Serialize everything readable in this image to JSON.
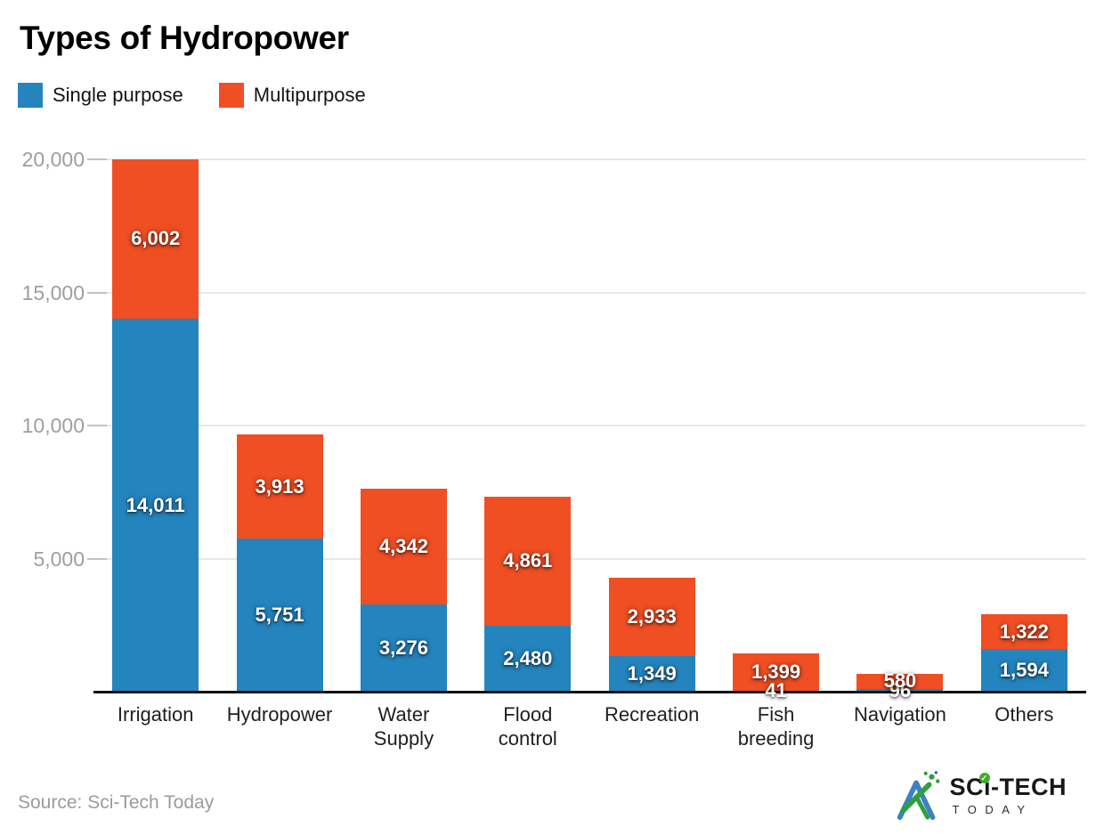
{
  "title": "Types of Hydropower",
  "legend": {
    "items": [
      {
        "label": "Single purpose",
        "color": "#2484bd"
      },
      {
        "label": "Multipurpose",
        "color": "#f04e23"
      }
    ]
  },
  "footer": {
    "source": "Source: Sci-Tech Today",
    "logo_line1": "SCi-TECH",
    "logo_line2": "TODAY"
  },
  "chart_data": {
    "type": "bar",
    "stacked": true,
    "title": "Types of Hydropower",
    "categories": [
      "Irrigation",
      "Hydropower",
      "Water Supply",
      "Flood control",
      "Recreation",
      "Fish breeding",
      "Navigation",
      "Others"
    ],
    "series": [
      {
        "name": "Single purpose",
        "color": "#2484bd",
        "values": [
          14011,
          5751,
          3276,
          2480,
          1349,
          41,
          96,
          1594
        ]
      },
      {
        "name": "Multipurpose",
        "color": "#f04e23",
        "values": [
          6002,
          3913,
          4342,
          4861,
          2933,
          1399,
          580,
          1322
        ]
      }
    ],
    "totals": [
      20013,
      9664,
      7618,
      7341,
      4282,
      1440,
      676,
      2916
    ],
    "ylim": [
      0,
      20000
    ],
    "yticks": [
      5000,
      10000,
      15000,
      20000
    ],
    "ytick_labels": [
      "5,000",
      "10,000",
      "15,000",
      "20,000"
    ],
    "grid": "horizontal",
    "legend_position": "top-left",
    "value_labels": "on-segments",
    "colors": {
      "grid": "#e8e8e8",
      "tick": "#c2c2c2",
      "axis": "#111111",
      "ytick_text": "#9e9e9e",
      "category_text": "#1f1f1f",
      "value_text": "#ffffff",
      "logo_blue": "#3b82c4",
      "logo_green": "#2f9e3f"
    }
  }
}
